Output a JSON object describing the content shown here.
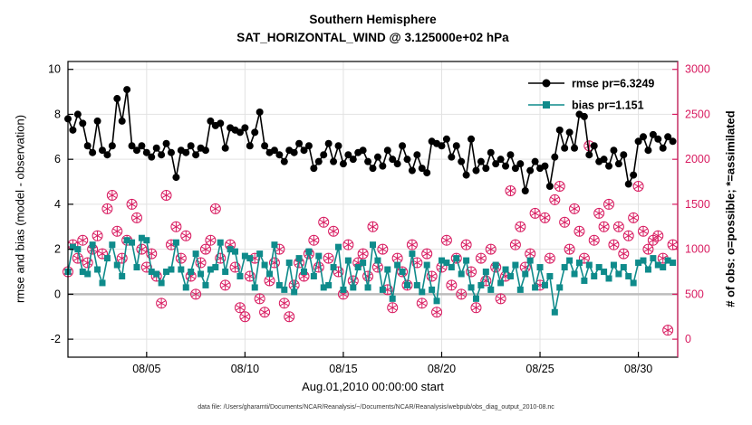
{
  "figure": {
    "title": "Southern Hemisphere",
    "subtitle": "SAT_HORIZONTAL_WIND @ 3.125000e+02 hPa",
    "xlabel": "Aug.01,2010 00:00:00 start",
    "ylabel_left": "rmse and bias (model - observation)",
    "ylabel_right": "# of obs: o=possible; *=assimilated",
    "footer": "data file: /Users/gharamti/Documents/NCAR/Reanalysis/~/Documents/NCAR/Reanalysis/webpub/obs_diag_output_2010-08.nc",
    "colors": {
      "rmse": "#000000",
      "bias": "#0f8b8b",
      "obs": "#d81b60",
      "grid": "#e2e2e2",
      "zero_line": "#bdbdbd",
      "axis": "#000000"
    }
  },
  "legend": [
    {
      "label": "rmse pr=6.3249",
      "series": "rmse"
    },
    {
      "label": "bias pr=1.151",
      "series": "bias"
    }
  ],
  "chart_data": {
    "type": "line",
    "title": "Southern Hemisphere",
    "subtitle": "SAT_HORIZONTAL_WIND @ 3.125000e+02 hPa",
    "xlabel": "Aug.01,2010 00:00:00 start",
    "ylabel": "rmse and bias (model - observation)",
    "ylabel_right": "# of obs: o=possible; *=assimilated",
    "grid": true,
    "legend_position": "top-right-inside",
    "x_axis": {
      "start_day": 1,
      "step_days": 0.25,
      "count": 124,
      "lim": [
        1,
        32
      ],
      "ticks": [
        {
          "day": 5,
          "label": "08/05"
        },
        {
          "day": 10,
          "label": "08/10"
        },
        {
          "day": 15,
          "label": "08/15"
        },
        {
          "day": 20,
          "label": "08/20"
        },
        {
          "day": 25,
          "label": "08/25"
        },
        {
          "day": 30,
          "label": "08/30"
        }
      ]
    },
    "y_left": {
      "lim": [
        -2.8,
        10.35
      ],
      "ticks": [
        -2,
        0,
        2,
        4,
        6,
        8,
        10
      ]
    },
    "y_right": {
      "lim": [
        -200,
        3090
      ],
      "ticks": [
        0,
        500,
        1000,
        1500,
        2000,
        2500,
        3000
      ],
      "map": "left_value = count/250 - 2"
    },
    "series": [
      {
        "id": "rmse",
        "name": "rmse pr=6.3249",
        "axis": "left",
        "marker": "circle_filled",
        "line": true,
        "values": [
          7.8,
          7.3,
          8.0,
          7.6,
          6.6,
          6.3,
          7.7,
          6.4,
          6.2,
          6.6,
          8.7,
          7.7,
          9.1,
          6.6,
          6.4,
          6.6,
          6.3,
          6.1,
          6.5,
          6.2,
          6.7,
          6.3,
          5.2,
          6.4,
          6.3,
          6.6,
          6.2,
          6.5,
          6.4,
          7.7,
          7.5,
          7.6,
          6.5,
          7.4,
          7.3,
          7.2,
          7.4,
          6.6,
          7.2,
          8.1,
          6.6,
          6.3,
          6.4,
          6.2,
          5.9,
          6.4,
          6.3,
          6.7,
          6.4,
          6.6,
          5.6,
          5.9,
          6.2,
          6.7,
          5.9,
          6.6,
          5.8,
          6.2,
          6.0,
          6.3,
          6.4,
          5.9,
          5.6,
          6.1,
          5.7,
          6.4,
          6.0,
          5.8,
          6.6,
          6.0,
          5.5,
          6.2,
          5.6,
          5.4,
          6.8,
          6.7,
          6.6,
          6.9,
          6.1,
          6.6,
          5.9,
          5.3,
          6.9,
          5.5,
          5.9,
          5.6,
          6.3,
          5.8,
          6.0,
          5.7,
          6.2,
          5.6,
          5.8,
          4.6,
          5.5,
          5.9,
          5.6,
          5.7,
          4.8,
          6.1,
          7.3,
          6.5,
          7.2,
          6.5,
          8.0,
          7.9,
          6.2,
          6.6,
          5.9,
          6.0,
          5.7,
          6.4,
          5.8,
          6.2,
          4.9,
          5.3,
          6.8,
          7.0,
          6.4,
          7.1,
          6.9,
          6.5,
          7.0,
          6.8
        ]
      },
      {
        "id": "bias",
        "name": "bias pr=1.151",
        "axis": "left",
        "marker": "square_filled",
        "line": true,
        "values": [
          1.0,
          2.1,
          2.0,
          1.0,
          0.9,
          2.2,
          1.1,
          0.5,
          1.6,
          2.2,
          1.3,
          0.8,
          2.4,
          2.3,
          1.2,
          2.5,
          2.4,
          1.0,
          0.9,
          0.5,
          1.0,
          1.1,
          2.3,
          1.1,
          0.3,
          1.0,
          1.8,
          0.9,
          0.4,
          1.1,
          1.2,
          2.3,
          1.0,
          2.0,
          1.9,
          0.8,
          1.7,
          1.6,
          0.3,
          1.8,
          1.3,
          0.9,
          2.2,
          0.4,
          0.2,
          1.4,
          0.1,
          1.6,
          1.0,
          1.9,
          0.8,
          1.7,
          0.3,
          0.4,
          1.2,
          2.1,
          0.2,
          1.5,
          0.3,
          1.2,
          1.4,
          0.3,
          2.2,
          1.5,
          0.2,
          1.1,
          -0.2,
          1.3,
          1.0,
          0.4,
          1.8,
          0.4,
          0.1,
          1.3,
          0.2,
          -0.3,
          1.5,
          1.4,
          1.2,
          1.6,
          0.9,
          1.5,
          0.3,
          -0.2,
          0.4,
          1.0,
          0.2,
          1.3,
          0.5,
          1.1,
          0.8,
          1.3,
          0.2,
          0.9,
          1.5,
          0.3,
          1.2,
          0.4,
          0.8,
          -0.8,
          0.3,
          1.2,
          1.5,
          0.9,
          1.4,
          0.6,
          1.3,
          0.8,
          1.2,
          1.0,
          0.7,
          1.3,
          0.9,
          1.2,
          0.8,
          0.5,
          1.4,
          1.5,
          1.1,
          1.6,
          1.3,
          1.2,
          1.5,
          1.4
        ]
      },
      {
        "id": "obs_possible",
        "name": "# of obs possible",
        "axis": "right",
        "marker": "circle_open",
        "line": false,
        "values": [
          750,
          1050,
          900,
          1100,
          850,
          1000,
          1150,
          950,
          1450,
          1600,
          1200,
          900,
          1100,
          1500,
          1350,
          1000,
          800,
          950,
          700,
          400,
          1600,
          1050,
          1250,
          900,
          1150,
          700,
          500,
          850,
          1000,
          1100,
          1450,
          900,
          600,
          1050,
          800,
          350,
          250,
          700,
          900,
          450,
          300,
          650,
          850,
          1000,
          400,
          250,
          600,
          850,
          700,
          950,
          1100,
          800,
          1300,
          900,
          1200,
          750,
          500,
          1050,
          650,
          850,
          950,
          700,
          1250,
          800,
          1000,
          550,
          350,
          900,
          750,
          600,
          1050,
          850,
          400,
          950,
          700,
          300,
          800,
          1100,
          600,
          900,
          500,
          1050,
          750,
          350,
          900,
          650,
          1000,
          800,
          450,
          700,
          1650,
          1050,
          1250,
          800,
          950,
          1400,
          600,
          1350,
          900,
          1550,
          1700,
          1300,
          1000,
          1450,
          1200,
          900,
          2150,
          1100,
          1400,
          1250,
          1500,
          1050,
          1250,
          950,
          1150,
          1350,
          1700,
          1200,
          1000,
          1100,
          1150,
          900,
          100,
          1050
        ]
      },
      {
        "id": "obs_assimilated",
        "name": "# of obs assimilated",
        "axis": "right",
        "marker": "asterisk",
        "line": false,
        "values": [
          750,
          1050,
          900,
          1100,
          850,
          1000,
          1150,
          950,
          1450,
          1600,
          1200,
          900,
          1100,
          1500,
          1350,
          1000,
          800,
          950,
          700,
          400,
          1600,
          1050,
          1250,
          900,
          1150,
          700,
          500,
          850,
          1000,
          1100,
          1450,
          900,
          600,
          1050,
          800,
          350,
          250,
          700,
          900,
          450,
          300,
          650,
          850,
          1000,
          400,
          250,
          600,
          850,
          700,
          950,
          1100,
          800,
          1300,
          900,
          1200,
          750,
          500,
          1050,
          650,
          850,
          950,
          700,
          1250,
          800,
          1000,
          550,
          350,
          900,
          750,
          600,
          1050,
          850,
          400,
          950,
          700,
          300,
          800,
          1100,
          600,
          900,
          500,
          1050,
          750,
          350,
          900,
          650,
          1000,
          800,
          450,
          700,
          1650,
          1050,
          1250,
          800,
          950,
          1400,
          600,
          1350,
          900,
          1550,
          1700,
          1300,
          1000,
          1450,
          1200,
          900,
          2150,
          1100,
          1400,
          1250,
          1500,
          1050,
          1250,
          950,
          1150,
          1350,
          1700,
          1200,
          1000,
          1100,
          1150,
          900,
          100,
          1050
        ]
      }
    ]
  }
}
